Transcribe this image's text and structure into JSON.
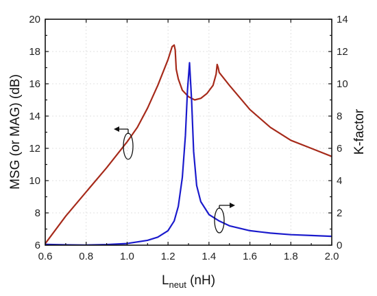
{
  "chart_data": {
    "type": "line",
    "xlabel": {
      "main": "L",
      "sub": "neut",
      "unit": " (nH)"
    },
    "ylabel_left": "MSG (or MAG) (dB)",
    "ylabel_right": "K-factor",
    "xlim": [
      0.6,
      2.0
    ],
    "ylim_left": [
      6,
      20
    ],
    "ylim_right": [
      0,
      14
    ],
    "x_ticks": [
      "0.6",
      "0.8",
      "1.0",
      "1.2",
      "1.4",
      "1.6",
      "1.8",
      "2.0"
    ],
    "y_left_ticks": [
      "6",
      "8",
      "10",
      "12",
      "14",
      "16",
      "18",
      "20"
    ],
    "y_right_ticks": [
      "0",
      "2",
      "4",
      "6",
      "8",
      "10",
      "12",
      "14"
    ],
    "grid": true,
    "colors": {
      "msg": "#a62a1a",
      "kfactor": "#1a1acc",
      "frame": "#111111"
    },
    "series": [
      {
        "key": "msg",
        "axis": "left",
        "x": [
          0.6,
          0.7,
          0.8,
          0.9,
          1.0,
          1.05,
          1.1,
          1.15,
          1.2,
          1.22,
          1.23,
          1.235,
          1.24,
          1.25,
          1.27,
          1.3,
          1.33,
          1.36,
          1.39,
          1.42,
          1.435,
          1.44,
          1.445,
          1.45,
          1.5,
          1.6,
          1.7,
          1.8,
          1.9,
          2.0
        ],
        "y": [
          6.1,
          7.8,
          9.3,
          10.8,
          12.4,
          13.3,
          14.5,
          15.9,
          17.5,
          18.3,
          18.4,
          18.1,
          16.9,
          16.3,
          15.6,
          15.2,
          15.0,
          15.1,
          15.4,
          15.9,
          16.6,
          17.2,
          17.0,
          16.7,
          15.9,
          14.4,
          13.3,
          12.5,
          12.0,
          11.5
        ]
      },
      {
        "key": "kfactor",
        "axis": "right",
        "x": [
          0.6,
          0.7,
          0.8,
          0.9,
          1.0,
          1.1,
          1.15,
          1.2,
          1.23,
          1.25,
          1.27,
          1.285,
          1.295,
          1.305,
          1.315,
          1.325,
          1.34,
          1.36,
          1.4,
          1.45,
          1.5,
          1.6,
          1.7,
          1.8,
          1.9,
          2.0
        ],
        "y": [
          0.05,
          0.02,
          0.01,
          0.04,
          0.1,
          0.3,
          0.5,
          0.9,
          1.5,
          2.4,
          4.2,
          6.8,
          9.6,
          11.3,
          9.0,
          5.8,
          3.7,
          2.7,
          1.9,
          1.5,
          1.2,
          0.9,
          0.75,
          0.65,
          0.6,
          0.55
        ]
      }
    ]
  }
}
